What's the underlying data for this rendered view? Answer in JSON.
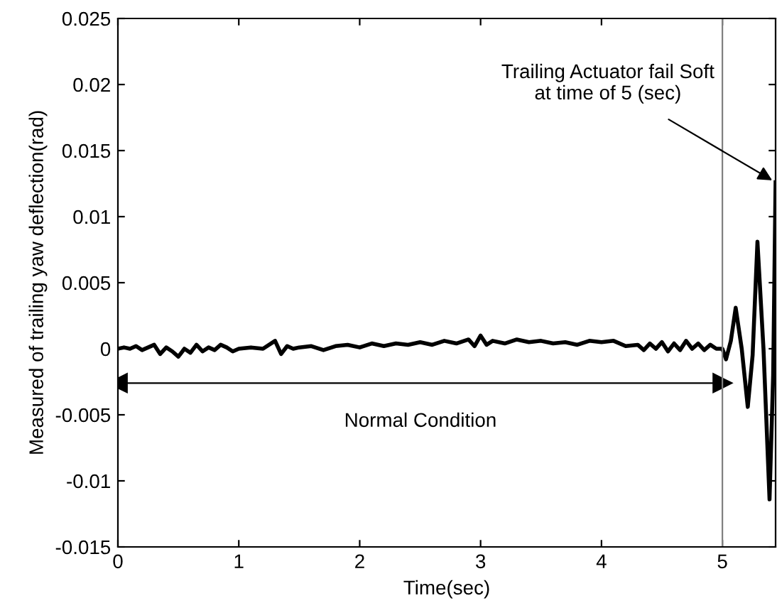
{
  "chart_data": {
    "type": "line",
    "xlabel": "Time(sec)",
    "ylabel": "Measured of trailing yaw deflection(rad)",
    "x": [
      0,
      0.05,
      0.1,
      0.15,
      0.2,
      0.25,
      0.3,
      0.35,
      0.4,
      0.45,
      0.5,
      0.55,
      0.6,
      0.65,
      0.7,
      0.75,
      0.8,
      0.85,
      0.9,
      0.95,
      1.0,
      1.1,
      1.2,
      1.3,
      1.35,
      1.4,
      1.45,
      1.5,
      1.6,
      1.7,
      1.8,
      1.9,
      2.0,
      2.1,
      2.2,
      2.3,
      2.4,
      2.5,
      2.6,
      2.7,
      2.8,
      2.9,
      2.95,
      3.0,
      3.05,
      3.1,
      3.2,
      3.3,
      3.4,
      3.5,
      3.6,
      3.7,
      3.8,
      3.9,
      4.0,
      4.1,
      4.2,
      4.3,
      4.35,
      4.4,
      4.45,
      4.5,
      4.55,
      4.6,
      4.65,
      4.7,
      4.75,
      4.8,
      4.85,
      4.9,
      4.95,
      5.0,
      5.03,
      5.07,
      5.11,
      5.16,
      5.21,
      5.25,
      5.29,
      5.34,
      5.39,
      5.42,
      5.44
    ],
    "series": [
      {
        "color": "#000000",
        "values": [
          0,
          0.0001,
          0,
          0.0002,
          -0.0001,
          0.0001,
          0.0003,
          -0.0004,
          0.0001,
          -0.0002,
          -0.0006,
          0,
          -0.0003,
          0.0003,
          -0.0002,
          0.0001,
          -0.0001,
          0.0003,
          0.0001,
          -0.0002,
          0,
          0.0001,
          0,
          0.0006,
          -0.0004,
          0.0002,
          0,
          0.0001,
          0.0002,
          -0.0001,
          0.0002,
          0.0003,
          0.0001,
          0.0004,
          0.0002,
          0.0004,
          0.0003,
          0.0005,
          0.0003,
          0.0006,
          0.0004,
          0.0007,
          0.0002,
          0.001,
          0.0003,
          0.0006,
          0.0004,
          0.0007,
          0.0005,
          0.0006,
          0.0004,
          0.0005,
          0.0003,
          0.0006,
          0.0005,
          0.0006,
          0.0002,
          0.0003,
          -0.0001,
          0.0004,
          0,
          0.0005,
          -0.0002,
          0.0004,
          -0.0001,
          0.0006,
          0,
          0.0004,
          -0.0001,
          0.0003,
          0,
          0,
          -0.0008,
          0.0006,
          0.0031,
          0,
          -0.0044,
          -0.0005,
          0.0081,
          0,
          -0.0114,
          -0.002,
          0.0126
        ]
      },
      {
        "type": "line",
        "x": [
          0,
          5
        ],
        "values": [
          -0.0026,
          -0.0026
        ],
        "color": "#000000",
        "marker": "triangle"
      }
    ],
    "xlim": [
      0,
      5.44
    ],
    "ylim": [
      -0.015,
      0.025
    ],
    "xticks": [
      0,
      1,
      2,
      3,
      4,
      5
    ],
    "yticks": [
      {
        "value": -0.015,
        "label": "-0.015"
      },
      {
        "value": -0.01,
        "label": "-0.01"
      },
      {
        "value": -0.005,
        "label": "-0.005"
      },
      0,
      0.005,
      0.01,
      0.015,
      0.02,
      0.025
    ],
    "ref_lines": [
      {
        "axis": "x",
        "value": 5,
        "color": "#808080"
      }
    ],
    "annotations": [
      "Normal Condition",
      {
        "text": "Trailing Actuator fail Soft\nat time of 5 (sec)",
        "x": 5.44,
        "y": 0.0126
      }
    ],
    "grid": false,
    "marker": "none",
    "line_style": "solid"
  }
}
